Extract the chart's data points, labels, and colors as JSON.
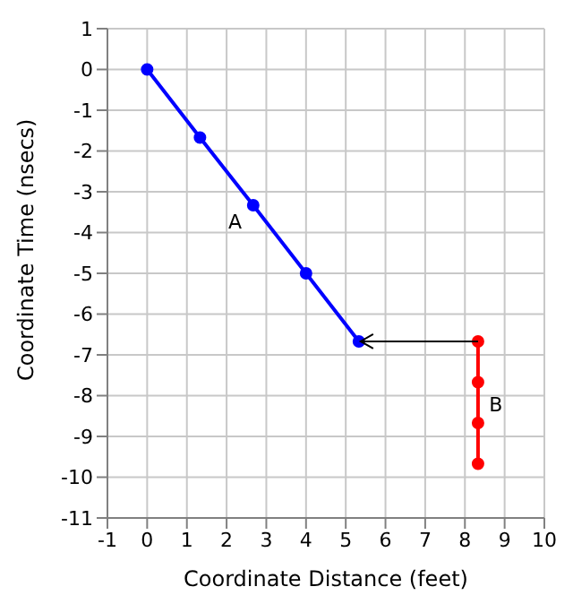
{
  "chart_data": {
    "type": "line",
    "xlabel": "Coordinate Distance (feet)",
    "ylabel": "Coordinate Time (nsecs)",
    "series": [
      {
        "name": "A",
        "color": "#0000ff",
        "x": [
          0,
          1.33,
          2.67,
          4,
          5.33
        ],
        "values": [
          0,
          -1.67,
          -3.33,
          -5,
          -6.67
        ]
      },
      {
        "name": "B",
        "color": "#ff0000",
        "x": [
          8.33,
          8.33,
          8.33,
          8.33
        ],
        "values": [
          -6.67,
          -7.67,
          -8.67,
          -9.67
        ]
      }
    ],
    "xlim": [
      -1,
      10
    ],
    "xticks": [
      -1,
      0,
      1,
      2,
      3,
      4,
      5,
      6,
      7,
      8,
      9,
      10
    ],
    "ylim": [
      -11,
      1
    ],
    "yticks": [
      -11,
      -10,
      -9,
      -8,
      -7,
      -6,
      -5,
      -4,
      -3,
      -2,
      -1,
      0,
      1
    ],
    "grid": true,
    "marker": "circle",
    "line_style": "solid",
    "legend": false
  }
}
